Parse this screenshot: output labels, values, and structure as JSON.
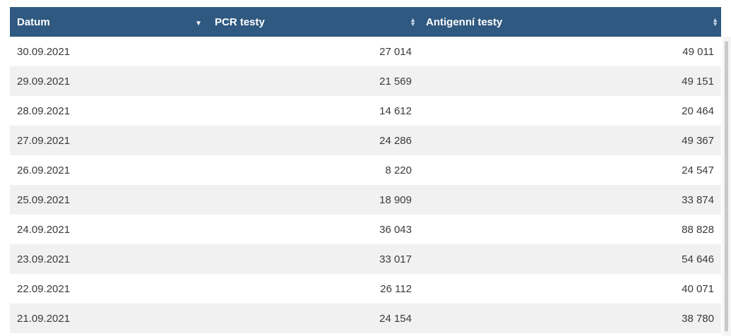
{
  "table": {
    "columns": [
      {
        "label": "Datum",
        "sort": "desc"
      },
      {
        "label": "PCR testy",
        "sort": "none"
      },
      {
        "label": "Antigenní testy",
        "sort": "none"
      }
    ],
    "rows": [
      {
        "date": "30.09.2021",
        "pcr": "27 014",
        "antigen": "49 011"
      },
      {
        "date": "29.09.2021",
        "pcr": "21 569",
        "antigen": "49 151"
      },
      {
        "date": "28.09.2021",
        "pcr": "14 612",
        "antigen": "20 464"
      },
      {
        "date": "27.09.2021",
        "pcr": "24 286",
        "antigen": "49 367"
      },
      {
        "date": "26.09.2021",
        "pcr": "8 220",
        "antigen": "24 547"
      },
      {
        "date": "25.09.2021",
        "pcr": "18 909",
        "antigen": "33 874"
      },
      {
        "date": "24.09.2021",
        "pcr": "36 043",
        "antigen": "88 828"
      },
      {
        "date": "23.09.2021",
        "pcr": "33 017",
        "antigen": "54 646"
      },
      {
        "date": "22.09.2021",
        "pcr": "26 112",
        "antigen": "40 071"
      },
      {
        "date": "21.09.2021",
        "pcr": "24 154",
        "antigen": "38 780"
      }
    ]
  },
  "colors": {
    "header_bg": "#2f5980",
    "header_text": "#ffffff",
    "row_alt": "#f1f1f1",
    "text": "#3a3a3a"
  },
  "icons": {
    "sort_desc": "sort-descending-icon",
    "sort_both": "sort-both-icon"
  }
}
